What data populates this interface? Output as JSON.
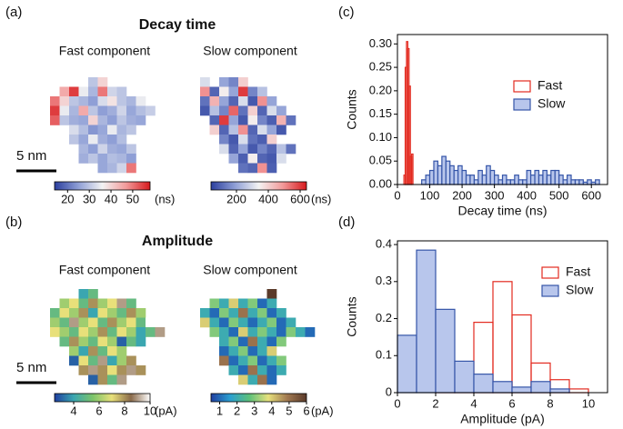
{
  "chart_data": [
    {
      "type": "heatmap",
      "panel": "(a)",
      "title": "Decay time",
      "subtitle": "Fast component",
      "scale_bar": "5 nm",
      "colormap": [
        "#2b3f9e",
        "#8f9fd6",
        "#f3f3f3",
        "#f29a9a",
        "#d7191c"
      ],
      "clim": [
        14,
        58
      ],
      "cticks": [
        20,
        30,
        40,
        50
      ],
      "unit": "(ns)",
      "values": [
        [
          null,
          null,
          null,
          null,
          30,
          40,
          null,
          null,
          null,
          null,
          null,
          null
        ],
        [
          null,
          45,
          55,
          35,
          28,
          50,
          32,
          30,
          null,
          null,
          null,
          null
        ],
        [
          50,
          40,
          30,
          28,
          25,
          33,
          38,
          30,
          28,
          35,
          null,
          null
        ],
        [
          55,
          35,
          28,
          45,
          30,
          25,
          27,
          32,
          26,
          29,
          31,
          null
        ],
        [
          52,
          30,
          27,
          26,
          40,
          28,
          25,
          30,
          27,
          26,
          null,
          null
        ],
        [
          null,
          null,
          33,
          29,
          24,
          26,
          35,
          28,
          30,
          null,
          null,
          null
        ],
        [
          null,
          null,
          30,
          26,
          35,
          27,
          25,
          29,
          null,
          null,
          null,
          null
        ],
        [
          null,
          null,
          null,
          28,
          25,
          32,
          27,
          26,
          30,
          null,
          null,
          null
        ],
        [
          null,
          null,
          null,
          27,
          30,
          26,
          29,
          28,
          25,
          null,
          null,
          null
        ],
        [
          null,
          null,
          null,
          null,
          null,
          26,
          28,
          32,
          50,
          null,
          null,
          null
        ]
      ]
    },
    {
      "type": "heatmap",
      "subtitle": "Slow component",
      "colormap": [
        "#2b3f9e",
        "#8f9fd6",
        "#f3f3f3",
        "#f29a9a",
        "#d7191c"
      ],
      "clim": [
        40,
        640
      ],
      "cticks": [
        200,
        400,
        600
      ],
      "unit": "(ns)",
      "values": [
        [
          300,
          null,
          200,
          150,
          400,
          null,
          null,
          null,
          null,
          null,
          null,
          null
        ],
        [
          500,
          100,
          350,
          200,
          600,
          150,
          250,
          null,
          null,
          null,
          null,
          null
        ],
        [
          120,
          450,
          200,
          100,
          300,
          80,
          500,
          200,
          null,
          null,
          null,
          null
        ],
        [
          80,
          250,
          150,
          550,
          120,
          400,
          100,
          300,
          200,
          null,
          null,
          null
        ],
        [
          null,
          100,
          600,
          200,
          80,
          350,
          150,
          90,
          450,
          120,
          null,
          null
        ],
        [
          null,
          400,
          100,
          250,
          500,
          100,
          300,
          200,
          80,
          null,
          null,
          null
        ],
        [
          null,
          null,
          150,
          80,
          300,
          120,
          90,
          400,
          null,
          null,
          null,
          null
        ],
        [
          null,
          null,
          300,
          100,
          200,
          80,
          150,
          100,
          250,
          120,
          null,
          null
        ],
        [
          null,
          null,
          null,
          200,
          90,
          350,
          100,
          80,
          300,
          null,
          null,
          null
        ],
        [
          null,
          null,
          null,
          null,
          120,
          100,
          500,
          90,
          null,
          null,
          null,
          null
        ]
      ]
    },
    {
      "type": "histogram",
      "panel": "(c)",
      "xlabel": "Decay time (ns)",
      "ylabel": "Counts",
      "xlim": [
        0,
        650
      ],
      "ylim": [
        0,
        0.32
      ],
      "xticks": [
        0,
        100,
        200,
        300,
        400,
        500,
        600
      ],
      "yticks": [
        {
          "value": 0,
          "label": "0.00"
        },
        0.05,
        {
          "value": 0.1,
          "label": "0.10"
        },
        0.15,
        {
          "value": 0.2,
          "label": "0.20"
        },
        0.25,
        {
          "value": 0.3,
          "label": "0.30"
        }
      ],
      "series": [
        {
          "name": "Fast",
          "color": "#e32a1f",
          "fill": "none",
          "bins": [
            20,
            24,
            28,
            32,
            36,
            40,
            44,
            48
          ],
          "values": [
            0.02,
            0.25,
            0.305,
            0.29,
            0.21,
            0.06,
            0.065
          ]
        },
        {
          "name": "Slow",
          "color": "#3555a8",
          "fill": "#b8c6ec",
          "bins": [
            75,
            87.5,
            100,
            112.5,
            125,
            137.5,
            150,
            162.5,
            175,
            187.5,
            200,
            212.5,
            225,
            237.5,
            250,
            262.5,
            275,
            287.5,
            300,
            312.5,
            325,
            337.5,
            350,
            362.5,
            375,
            387.5,
            400,
            412.5,
            425,
            437.5,
            450,
            462.5,
            475,
            487.5,
            500,
            512.5,
            525,
            537.5,
            550,
            562.5,
            575,
            587.5,
            600,
            612.5,
            625
          ],
          "values": [
            0.01,
            0.02,
            0.03,
            0.05,
            0.04,
            0.06,
            0.05,
            0.04,
            0.03,
            0.04,
            0.03,
            0.02,
            0.02,
            0.01,
            0.03,
            0.02,
            0.04,
            0.03,
            0.02,
            0.01,
            0.02,
            0.01,
            0.01,
            0.02,
            0.01,
            0.01,
            0.03,
            0.02,
            0.03,
            0.02,
            0.03,
            0.02,
            0.03,
            0.03,
            0.02,
            0.01,
            0.02,
            0.01,
            0.01,
            0.01,
            0.005,
            0.01,
            0.005,
            0.01
          ]
        }
      ]
    },
    {
      "type": "heatmap",
      "panel": "(b)",
      "title": "Amplitude",
      "subtitle": "Fast component",
      "scale_bar": "5 nm",
      "colormap": [
        "#1f3ea0",
        "#3aa6b0",
        "#7cc46a",
        "#e8e07a",
        "#8a6a4a",
        "#ffffff"
      ],
      "clim": [
        2.5,
        10
      ],
      "cticks": [
        4,
        6,
        8,
        10
      ],
      "unit": "(pA)",
      "values": [
        [
          null,
          null,
          null,
          4,
          5,
          null,
          null,
          null,
          null,
          null,
          null,
          null
        ],
        [
          null,
          6,
          7,
          5,
          8,
          6,
          7,
          9,
          5,
          null,
          null,
          null
        ],
        [
          5,
          7,
          6,
          8,
          4,
          7,
          6,
          5,
          8,
          6,
          null,
          null
        ],
        [
          6,
          5,
          9,
          6,
          7,
          5,
          8,
          6,
          7,
          5,
          10,
          null
        ],
        [
          7,
          6,
          5,
          7,
          6,
          8,
          5,
          7,
          6,
          4,
          5,
          9
        ],
        [
          null,
          5,
          8,
          6,
          5,
          7,
          6,
          3,
          5,
          4,
          null,
          null
        ],
        [
          null,
          null,
          6,
          4,
          8,
          5,
          7,
          6,
          null,
          null,
          null,
          null
        ],
        [
          null,
          null,
          3,
          7,
          5,
          9,
          4,
          6,
          8,
          null,
          null,
          null
        ],
        [
          null,
          null,
          null,
          8,
          9,
          8,
          7,
          8,
          9,
          8,
          null,
          null
        ],
        [
          null,
          null,
          null,
          null,
          3,
          8,
          5,
          9,
          null,
          null,
          null,
          null
        ]
      ]
    },
    {
      "type": "heatmap",
      "subtitle": "Slow component",
      "colormap": [
        "#1f3ea0",
        "#2b9fd0",
        "#5cc07a",
        "#e6e07c",
        "#a07850",
        "#5a3a2a"
      ],
      "clim": [
        0.5,
        6
      ],
      "cticks": [
        1,
        2,
        3,
        4,
        5,
        6
      ],
      "unit": "(pA)",
      "values": [
        [
          null,
          null,
          null,
          null,
          null,
          null,
          null,
          6,
          null,
          null,
          null,
          null
        ],
        [
          null,
          3,
          2,
          4,
          2,
          3,
          1,
          2,
          null,
          null,
          null,
          null
        ],
        [
          2,
          1,
          3,
          2,
          5,
          2,
          3,
          1,
          2,
          null,
          null,
          null
        ],
        [
          4,
          2,
          1,
          3,
          2,
          1,
          2,
          3,
          1,
          2,
          null,
          null
        ],
        [
          null,
          3,
          2,
          1,
          4,
          2,
          3,
          2,
          1,
          3,
          2,
          1
        ],
        [
          null,
          null,
          2,
          3,
          1,
          5,
          2,
          1,
          3,
          null,
          null,
          null
        ],
        [
          null,
          null,
          1,
          2,
          3,
          1,
          2,
          4,
          null,
          null,
          null,
          null
        ],
        [
          null,
          null,
          5,
          1,
          2,
          3,
          1,
          2,
          3,
          null,
          null,
          null
        ],
        [
          null,
          null,
          null,
          2,
          1,
          5,
          2,
          1,
          2,
          null,
          null,
          null
        ],
        [
          null,
          null,
          null,
          null,
          4,
          2,
          5,
          1,
          null,
          null,
          null,
          null
        ]
      ]
    },
    {
      "type": "histogram",
      "panel": "(d)",
      "xlabel": "Amplitude (pA)",
      "ylabel": "Counts",
      "xlim": [
        0,
        11
      ],
      "ylim": [
        0,
        0.41
      ],
      "xticks": [
        0,
        2,
        4,
        6,
        8,
        10
      ],
      "yticks": [
        0,
        0.1,
        0.2,
        0.3,
        0.4
      ],
      "series": [
        {
          "name": "Fast",
          "color": "#e32a1f",
          "fill": "none",
          "bins": [
            0,
            1,
            2,
            3,
            4,
            5,
            6,
            7,
            8,
            9,
            10
          ],
          "values": [
            0,
            0,
            0.055,
            0.045,
            0.19,
            0.3,
            0.21,
            0.08,
            0.035,
            0.01
          ]
        },
        {
          "name": "Slow",
          "color": "#3555a8",
          "fill": "#b8c6ec",
          "bins": [
            0,
            1,
            2,
            3,
            4,
            5,
            6,
            7,
            8,
            9,
            10
          ],
          "values": [
            0.155,
            0.385,
            0.225,
            0.085,
            0.05,
            0.03,
            0.015,
            0.03,
            0.01,
            0
          ]
        }
      ]
    }
  ]
}
